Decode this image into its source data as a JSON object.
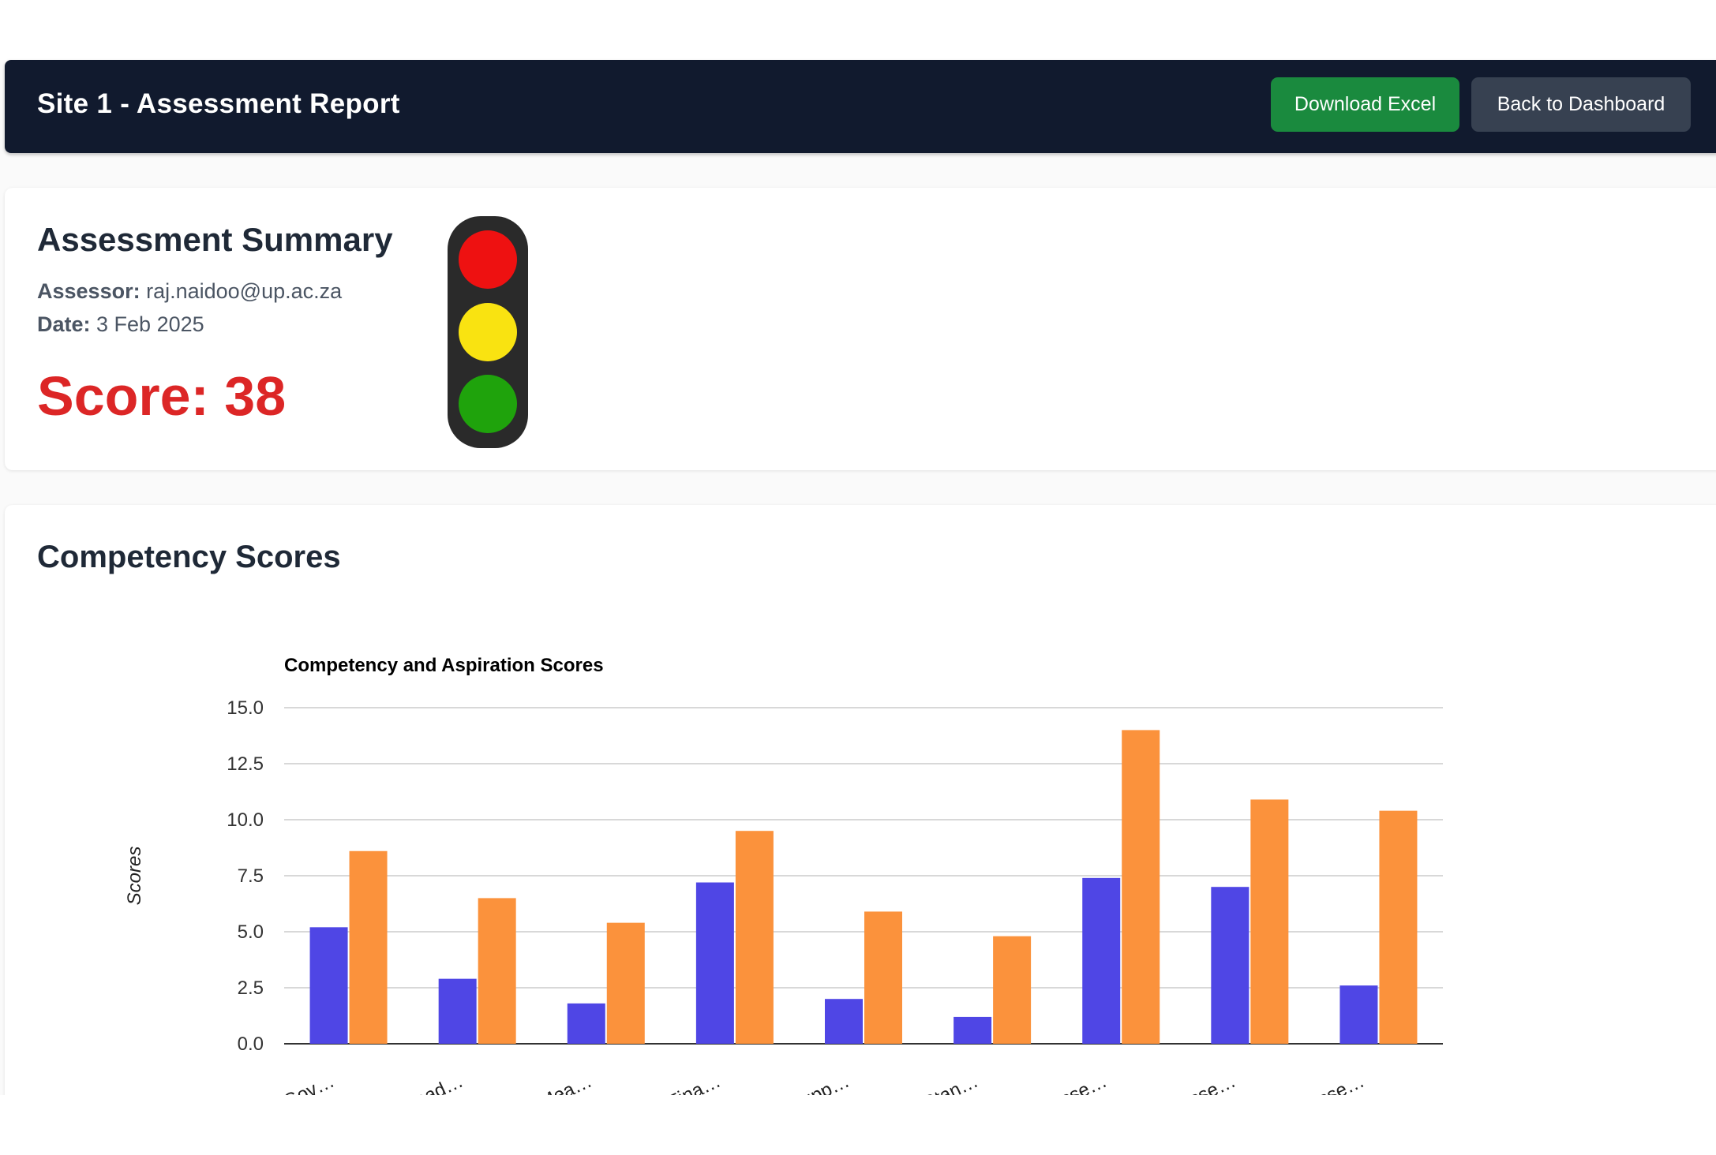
{
  "header": {
    "title": "Site 1 - Assessment Report",
    "download_label": "Download Excel",
    "back_label": "Back to Dashboard"
  },
  "summary": {
    "title": "Assessment Summary",
    "assessor_label": "Assessor:",
    "assessor_value": "raj.naidoo@up.ac.za",
    "date_label": "Date:",
    "date_value": "3 Feb 2025",
    "score_text": "Score: 38",
    "traffic_light": {
      "red": "#ee1111",
      "yellow": "#f9e311",
      "green": "#1fa30c"
    }
  },
  "competency": {
    "heading": "Competency Scores"
  },
  "colors": {
    "header_bg": "#111a2e",
    "excel_button": "#1a8a3e",
    "dashboard_button": "#374151",
    "score_red": "#dc2626"
  },
  "chart_data": {
    "type": "bar",
    "title": "Competency and Aspiration Scores",
    "xlabel": "",
    "ylabel": "Scores",
    "ylim": [
      0,
      15
    ],
    "yticks": [
      "0.0",
      "2.5",
      "5.0",
      "7.5",
      "10.0",
      "12.5",
      "15.0"
    ],
    "grid": true,
    "categories": [
      "Gov…",
      "Lead…",
      "Mea…",
      "Fina…",
      "Supp…",
      "Stan…",
      "Asse…",
      "Asse…",
      "Asse…"
    ],
    "series": [
      {
        "color": "#4f46e5",
        "values": [
          5.2,
          2.9,
          1.8,
          7.2,
          2.0,
          1.2,
          7.4,
          7.0,
          2.6
        ]
      },
      {
        "color": "#fb923c",
        "values": [
          8.6,
          6.5,
          5.4,
          9.5,
          5.9,
          4.8,
          14.0,
          10.9,
          10.4
        ]
      }
    ]
  }
}
